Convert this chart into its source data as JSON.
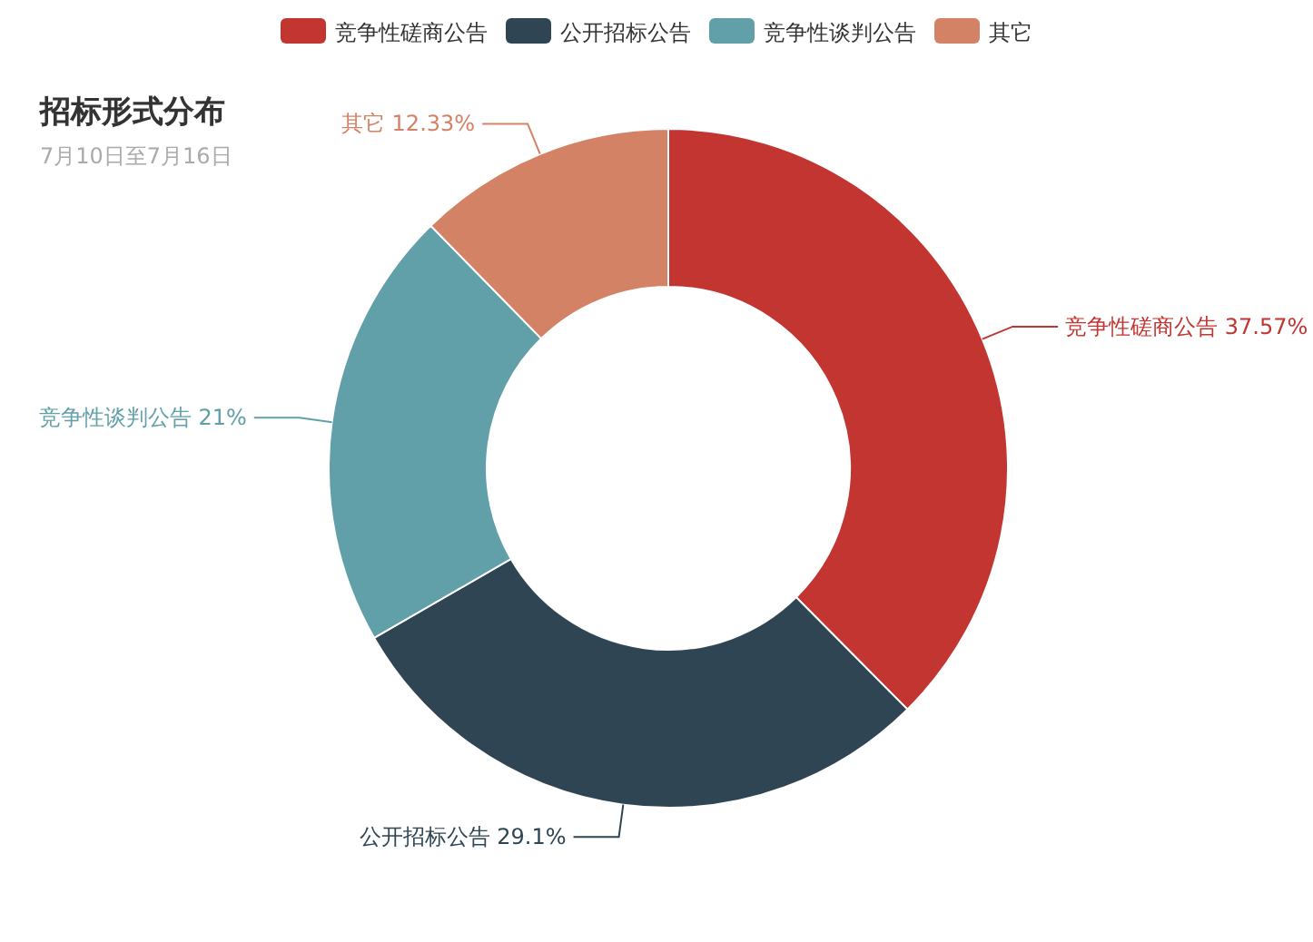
{
  "chart_data": {
    "type": "donut",
    "title": "招标形式分布",
    "subtitle": "7月10日至7月16日",
    "categories": [
      "竞争性磋商公告",
      "公开招标公告",
      "竞争性谈判公告",
      "其它"
    ],
    "values": [
      37.57,
      29.1,
      21,
      12.33
    ],
    "colors": [
      "#c23531",
      "#2f4554",
      "#61a0a8",
      "#d48265"
    ],
    "value_labels": [
      "37.57%",
      "29.1%",
      "21%",
      "12.33%"
    ],
    "legend": "top"
  }
}
